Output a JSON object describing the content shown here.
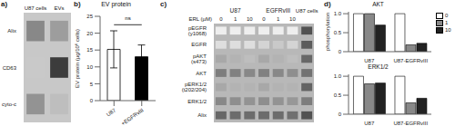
{
  "chart_data": [
    {
      "type": "heatmap",
      "annotations": [
        {
          "text": "a)"
        }
      ],
      "x_categories": [
        "U87 cells",
        "EVs"
      ],
      "y_categories": [
        "Alix",
        "CD63",
        "cyto-c"
      ],
      "cells": [
        [
          0.55,
          0.45
        ],
        [
          0.25,
          0.9
        ],
        [
          0.5,
          0.3
        ]
      ],
      "color": "#c8c8c8"
    },
    {
      "type": "bar",
      "title": "EV protein",
      "ylabel": "EV protein (µg/10⁶ cells)",
      "annotations": [
        {
          "text": "b)"
        },
        {
          "text": "ns",
          "y": 22.5
        }
      ],
      "categories": [
        "U87",
        "+EGFRvIII"
      ],
      "values": [
        15.2,
        13.0
      ],
      "errors": [
        5.5,
        3.5
      ],
      "colors": [
        "white",
        "black"
      ],
      "ylim": [
        0,
        25
      ],
      "yticks": [
        0,
        5,
        10,
        15,
        20,
        25
      ]
    },
    {
      "type": "heatmap",
      "annotations": [
        {
          "text": "c)"
        }
      ],
      "xlabel": "ERL (µM)",
      "x_categories": [
        "0",
        "1",
        "10",
        "0",
        "1",
        "10",
        "U87 cells"
      ],
      "x_groups": [
        "U87",
        "U87",
        "U87",
        "EGFRvIII",
        "EGFRvIII",
        "EGFRvIII",
        null
      ],
      "y_categories": [
        "pEGFR (y1068)",
        "EGFR",
        "pAKT (s473)",
        "AKT",
        "pERK1/2 (t202/204)",
        "ERK1/2",
        "Alix"
      ],
      "cells": [
        [
          0.08,
          0.08,
          0.08,
          0.08,
          0.08,
          0.08,
          0.8
        ],
        [
          0.15,
          0.15,
          0.15,
          0.2,
          0.25,
          0.2,
          0.75
        ],
        [
          0.4,
          0.35,
          0.3,
          0.4,
          0.35,
          0.3,
          0.7
        ],
        [
          0.6,
          0.58,
          0.55,
          0.58,
          0.55,
          0.52,
          0.65
        ],
        [
          0.4,
          0.35,
          0.35,
          0.4,
          0.35,
          0.35,
          0.72
        ],
        [
          0.55,
          0.52,
          0.5,
          0.52,
          0.5,
          0.48,
          0.6
        ],
        [
          0.7,
          0.68,
          0.68,
          0.68,
          0.68,
          0.66,
          0.8
        ]
      ],
      "color": "#b8b8b8"
    },
    {
      "type": "bar",
      "title": "AKT",
      "ylabel": "phosphorylation",
      "annotations": [
        {
          "text": "d)"
        }
      ],
      "categories": [
        "U87",
        "U87-EGFRvIII"
      ],
      "series": [
        {
          "name": "0",
          "color": "white",
          "values": [
            1.0,
            1.0
          ]
        },
        {
          "name": "1",
          "color": "#888888",
          "values": [
            1.0,
            0.18
          ]
        },
        {
          "name": "10",
          "color": "#222222",
          "values": [
            0.7,
            0.22
          ]
        }
      ],
      "ylim": [
        0,
        1.05
      ],
      "yticks": [
        0,
        0.5,
        {
          "value": 1.0,
          "label": "1.0"
        }
      ],
      "legend": "upper right"
    },
    {
      "type": "bar",
      "title": "ERK1/2",
      "categories": [
        "U87",
        "U87-EGFRvIII"
      ],
      "series": [
        {
          "name": "0",
          "color": "white",
          "values": [
            1.0,
            1.0
          ]
        },
        {
          "name": "1",
          "color": "#888888",
          "values": [
            0.8,
            0.3
          ]
        },
        {
          "name": "10",
          "color": "#222222",
          "values": [
            0.82,
            0.42
          ]
        }
      ],
      "ylim": [
        0,
        1.05
      ],
      "yticks": [
        0,
        0.5,
        {
          "value": 1.0,
          "label": "1.0"
        }
      ]
    }
  ]
}
